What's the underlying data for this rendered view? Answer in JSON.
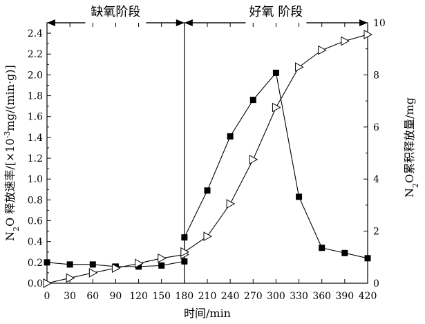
{
  "chart_data": {
    "type": "line",
    "x": [
      0,
      30,
      60,
      90,
      120,
      150,
      180,
      180,
      210,
      240,
      270,
      300,
      330,
      360,
      390,
      420
    ],
    "xlabel": "时间/min",
    "xlim": [
      0,
      420
    ],
    "xticks": [
      0,
      30,
      60,
      90,
      120,
      150,
      180,
      210,
      240,
      270,
      300,
      330,
      360,
      390,
      420
    ],
    "y_left": {
      "label_parts": [
        "N",
        "2",
        "O 释放速率/[×10",
        "-3",
        "mg/(min·g)]"
      ],
      "lim": [
        0,
        2.5
      ],
      "ticks": [
        0.0,
        0.2,
        0.4,
        0.6,
        0.8,
        1.0,
        1.2,
        1.4,
        1.6,
        1.8,
        2.0,
        2.2,
        2.4
      ],
      "tick_labels": [
        "0.0",
        "0.2",
        "0.4",
        "0.6",
        "0.8",
        "1.0",
        "1.2",
        "1.4",
        "1.6",
        "1.8",
        "2.0",
        "2.2",
        "2.4"
      ]
    },
    "y_right": {
      "label_parts": [
        "N",
        "2",
        "O累积释放量/mg"
      ],
      "lim": [
        0,
        10
      ],
      "ticks": [
        0,
        2,
        4,
        6,
        8,
        10
      ],
      "tick_labels": [
        "0",
        "2",
        "4",
        "6",
        "8",
        "10"
      ]
    },
    "series": [
      {
        "marker": "filled-square",
        "axis": "left",
        "x": [
          0,
          30,
          60,
          90,
          120,
          150,
          180,
          180,
          210,
          240,
          270,
          300,
          330,
          360,
          390,
          420
        ],
        "values": [
          0.2,
          0.18,
          0.18,
          0.16,
          0.16,
          0.17,
          0.21,
          0.44,
          0.89,
          1.41,
          1.76,
          2.02,
          0.83,
          0.34,
          0.29,
          0.24
        ]
      },
      {
        "marker": "hollow-triangle-right",
        "axis": "right",
        "x": [
          0,
          30,
          60,
          90,
          120,
          150,
          180,
          180,
          210,
          240,
          270,
          300,
          330,
          360,
          390,
          420
        ],
        "values": [
          0.0,
          0.2,
          0.4,
          0.58,
          0.76,
          0.96,
          1.1,
          1.2,
          1.8,
          3.05,
          4.75,
          6.75,
          8.3,
          8.95,
          9.3,
          9.55
        ]
      }
    ],
    "divider_x": 180,
    "phases": [
      {
        "label": "缺氧阶段",
        "from": 0,
        "to": 180
      },
      {
        "label": "好氧 阶段",
        "from": 180,
        "to": 420
      }
    ],
    "grid": false,
    "legend": "none",
    "colors": {
      "line": "#000000",
      "background": "#ffffff"
    }
  }
}
